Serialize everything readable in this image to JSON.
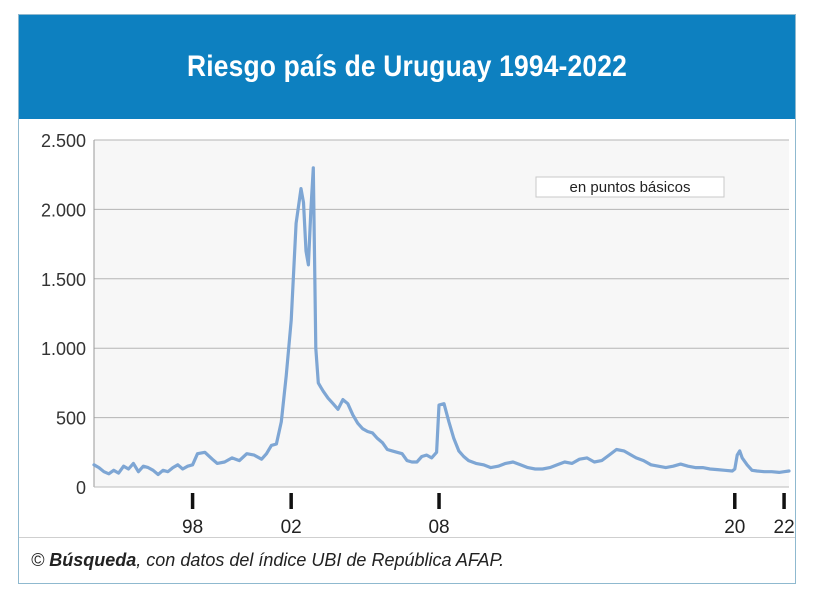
{
  "header": {
    "title": "Riesgo país de Uruguay 1994-2022"
  },
  "source": {
    "copyright": "©",
    "brand": "Búsqueda",
    "rest": ", con datos del índice UBI de República AFAP."
  },
  "colors": {
    "header_bg": "#0d80c0",
    "line": "#7ea6d4",
    "grid": "#b5b5b5",
    "plot_bg": "#f7f7f7"
  },
  "chart_data": {
    "type": "line",
    "title": "Riesgo país de Uruguay 1994-2022",
    "annotation": "en puntos básicos",
    "xlabel": "",
    "ylabel": "",
    "xlim": [
      1994.0,
      2022.2
    ],
    "ylim": [
      0,
      2500
    ],
    "yticks": [
      0,
      500,
      1000,
      1500,
      2000,
      2500
    ],
    "ytick_labels": [
      "0",
      "500",
      "1.000",
      "1.500",
      "2.000",
      "2.500"
    ],
    "xticks": [
      1998,
      2002,
      2008,
      2020,
      2022
    ],
    "xtick_labels": [
      "98",
      "02",
      "08",
      "20",
      "22"
    ],
    "grid": "horizontal",
    "series": [
      {
        "x": [
          1994.0,
          1994.2,
          1994.4,
          1994.6,
          1994.8,
          1995.0,
          1995.2,
          1995.4,
          1995.6,
          1995.8,
          1996.0,
          1996.2,
          1996.4,
          1996.6,
          1996.8,
          1997.0,
          1997.2,
          1997.4,
          1997.6,
          1997.8,
          1998.0,
          1998.2,
          1998.5,
          1998.8,
          1999.0,
          1999.3,
          1999.6,
          1999.9,
          2000.2,
          2000.5,
          2000.8,
          2001.0,
          2001.2,
          2001.4,
          2001.6,
          2001.8,
          2002.0,
          2002.2,
          2002.4,
          2002.5,
          2002.6,
          2002.7,
          2002.8,
          2002.9,
          2003.0,
          2003.1,
          2003.2,
          2003.3,
          2003.5,
          2003.7,
          2003.9,
          2004.1,
          2004.3,
          2004.5,
          2004.7,
          2004.9,
          2005.1,
          2005.3,
          2005.5,
          2005.7,
          2005.9,
          2006.1,
          2006.3,
          2006.5,
          2006.7,
          2006.9,
          2007.1,
          2007.3,
          2007.5,
          2007.7,
          2007.9,
          2008.0,
          2008.2,
          2008.4,
          2008.6,
          2008.8,
          2009.0,
          2009.2,
          2009.5,
          2009.8,
          2010.1,
          2010.4,
          2010.7,
          2011.0,
          2011.3,
          2011.6,
          2011.9,
          2012.2,
          2012.5,
          2012.8,
          2013.1,
          2013.4,
          2013.7,
          2014.0,
          2014.3,
          2014.6,
          2014.9,
          2015.2,
          2015.5,
          2015.8,
          2016.0,
          2016.3,
          2016.6,
          2016.9,
          2017.2,
          2017.5,
          2017.8,
          2018.1,
          2018.4,
          2018.7,
          2019.0,
          2019.3,
          2019.6,
          2019.9,
          2020.0,
          2020.1,
          2020.2,
          2020.3,
          2020.5,
          2020.7,
          2020.9,
          2021.2,
          2021.5,
          2021.8,
          2022.0,
          2022.2
        ],
        "y": [
          160,
          140,
          110,
          95,
          120,
          100,
          150,
          130,
          170,
          110,
          150,
          140,
          120,
          90,
          120,
          110,
          140,
          160,
          130,
          150,
          160,
          240,
          250,
          200,
          170,
          180,
          210,
          190,
          240,
          230,
          200,
          240,
          300,
          310,
          470,
          800,
          1200,
          1900,
          2150,
          2050,
          1700,
          1600,
          2000,
          2300,
          1000,
          750,
          720,
          690,
          640,
          600,
          560,
          630,
          600,
          520,
          460,
          420,
          400,
          390,
          350,
          320,
          270,
          260,
          250,
          240,
          190,
          180,
          180,
          220,
          230,
          210,
          250,
          590,
          600,
          470,
          350,
          260,
          220,
          190,
          170,
          160,
          140,
          150,
          170,
          180,
          160,
          140,
          130,
          130,
          140,
          160,
          180,
          170,
          200,
          210,
          180,
          190,
          230,
          270,
          260,
          230,
          210,
          190,
          160,
          150,
          140,
          150,
          165,
          150,
          140,
          140,
          130,
          125,
          120,
          115,
          130,
          230,
          260,
          210,
          160,
          120,
          115,
          110,
          110,
          105,
          110,
          115
        ]
      }
    ]
  }
}
